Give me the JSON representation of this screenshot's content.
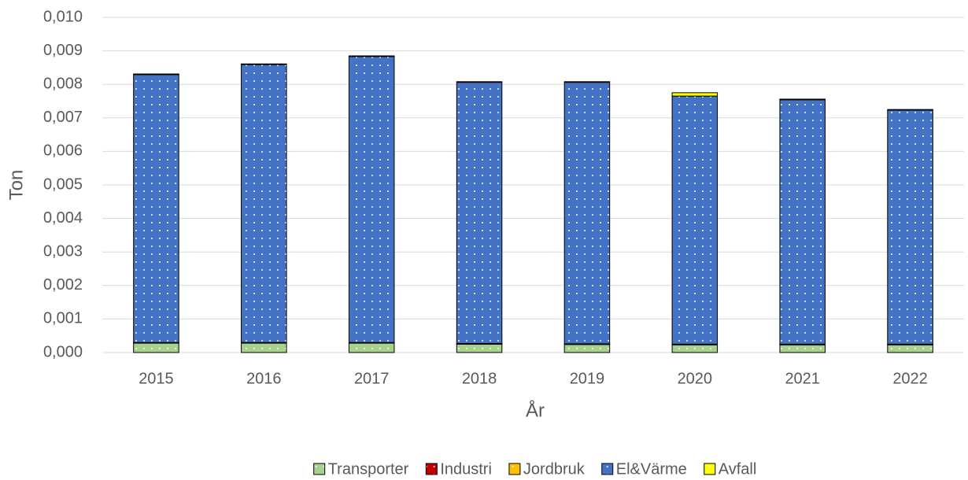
{
  "chart_data": {
    "type": "bar",
    "stacked": true,
    "x_label": "År",
    "y_label": "Ton",
    "categories": [
      "2015",
      "2016",
      "2017",
      "2018",
      "2019",
      "2020",
      "2021",
      "2022"
    ],
    "series": [
      {
        "name": "Transporter",
        "color": "#a9d18e",
        "values": [
          0.00028,
          0.00028,
          0.00028,
          0.00025,
          0.00024,
          0.00023,
          0.00023,
          0.00023
        ]
      },
      {
        "name": "Industri",
        "color": "#c00000",
        "values": [
          1e-05,
          1e-05,
          1e-05,
          1e-05,
          1e-05,
          1e-05,
          1e-05,
          1e-05
        ]
      },
      {
        "name": "Jordbruk",
        "color": "#ffc000",
        "values": [
          1e-05,
          1e-05,
          1e-05,
          1e-05,
          1e-05,
          1e-05,
          1e-05,
          1e-05
        ]
      },
      {
        "name": "El&Värme",
        "color": "#4472c4",
        "values": [
          0.00799,
          0.00829,
          0.00853,
          0.00779,
          0.0078,
          0.0074,
          0.00729,
          0.00698
        ]
      },
      {
        "name": "Avfall",
        "color": "#ffff00",
        "values": [
          2e-05,
          2e-05,
          2e-05,
          2e-05,
          2e-05,
          0.0001,
          2e-05,
          2e-05
        ]
      }
    ],
    "ylim": [
      0,
      0.01
    ],
    "yticks": [
      {
        "value": 0,
        "label": "0,000"
      },
      {
        "value": 0.001,
        "label": "0,001"
      },
      {
        "value": 0.002,
        "label": "0,002"
      },
      {
        "value": 0.003,
        "label": "0,003"
      },
      {
        "value": 0.004,
        "label": "0,004"
      },
      {
        "value": 0.005,
        "label": "0,005"
      },
      {
        "value": 0.006,
        "label": "0,006"
      },
      {
        "value": 0.007,
        "label": "0,007"
      },
      {
        "value": 0.008,
        "label": "0,008"
      },
      {
        "value": 0.009,
        "label": "0,009"
      },
      {
        "value": 0.01,
        "label": "0,010"
      }
    ],
    "grid": true,
    "legend": "bottom"
  }
}
